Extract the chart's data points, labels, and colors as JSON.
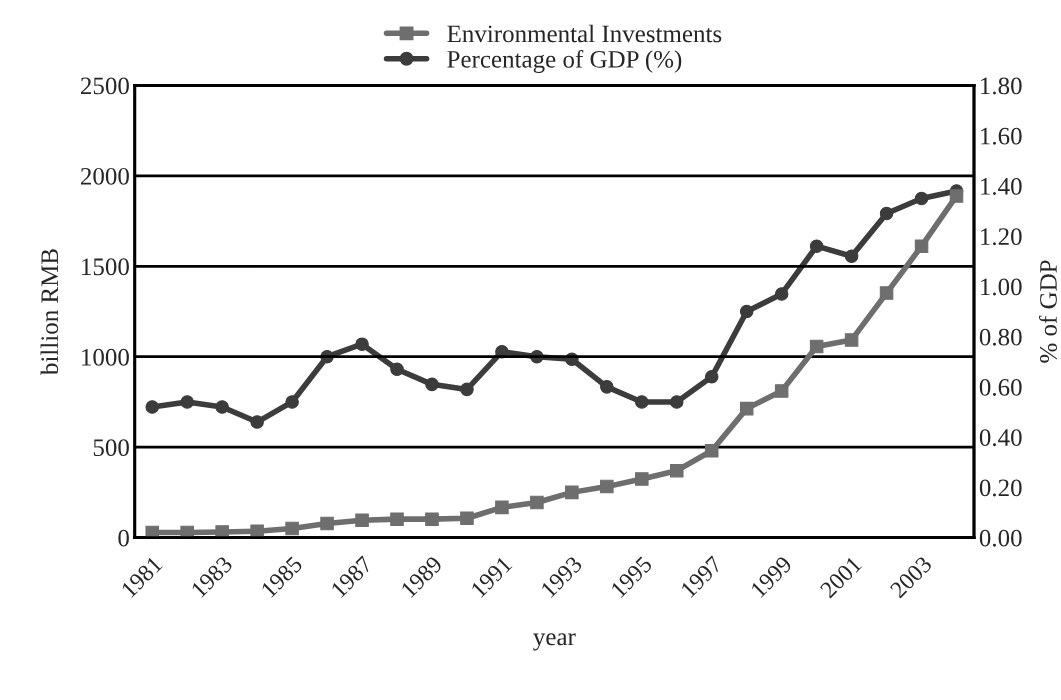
{
  "chart_data": {
    "type": "line",
    "xlabel": "year",
    "ylabel": "billion RMB",
    "y2label": "% of GDP",
    "categories": [
      "1981",
      null,
      "1983",
      null,
      "1985",
      null,
      "1987",
      null,
      "1989",
      null,
      "1991",
      null,
      "1993",
      null,
      "1995",
      null,
      "1997",
      null,
      "1999",
      null,
      "2001",
      null,
      "2003",
      null
    ],
    "series": [
      {
        "name": "Environmental Investments",
        "color": "#6e6e6e",
        "marker": "square",
        "values": [
          28,
          28,
          31,
          35,
          50,
          78,
          96,
          102,
          102,
          107,
          167,
          194,
          250,
          282,
          324,
          370,
          480,
          713,
          811,
          1056,
          1093,
          1352,
          1611,
          1889
        ]
      },
      {
        "name": "Percentage of GDP (%)",
        "color": "#3c3c3c",
        "marker": "circle",
        "axis": "y2",
        "values": [
          0.52,
          0.54,
          0.52,
          0.46,
          0.54,
          0.72,
          0.77,
          0.67,
          0.61,
          0.59,
          0.74,
          0.72,
          0.71,
          0.6,
          0.54,
          0.54,
          0.64,
          0.9,
          0.97,
          1.16,
          1.12,
          1.29,
          1.35,
          1.38
        ]
      }
    ],
    "ylim": [
      0,
      2500
    ],
    "yticks": [
      0,
      500,
      1000,
      1500,
      2000,
      2500
    ],
    "y2lim": [
      0,
      1.8
    ],
    "y2ticks": [
      {
        "value": 0,
        "label": "0.00"
      },
      {
        "value": 0.2,
        "label": "0.20"
      },
      {
        "value": 0.4,
        "label": "0.40"
      },
      {
        "value": 0.6,
        "label": "0.60"
      },
      {
        "value": 0.8,
        "label": "0.80"
      },
      {
        "value": 1,
        "label": "1.00"
      },
      {
        "value": 1.2,
        "label": "1.20"
      },
      {
        "value": 1.4,
        "label": "1.40"
      },
      {
        "value": 1.6,
        "label": "1.60"
      },
      {
        "value": 1.8,
        "label": "1.80"
      }
    ],
    "grid": "y",
    "legend": "top",
    "line_style": "solid"
  }
}
